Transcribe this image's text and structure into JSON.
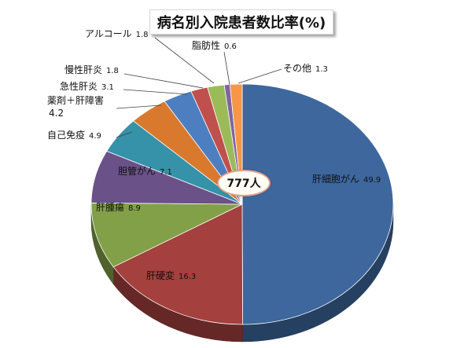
{
  "chart_data": {
    "type": "pie",
    "title": "病名別入院患者数比率(%)",
    "center_label": "777人",
    "slices": [
      {
        "name": "肝細胞がん",
        "value": 49.9,
        "color": "#3d679d"
      },
      {
        "name": "肝硬変",
        "value": 16.3,
        "color": "#a4403d"
      },
      {
        "name": "肝腫瘍",
        "value": 8.9,
        "color": "#82a048"
      },
      {
        "name": "胆管がん",
        "value": 7.1,
        "color": "#6a5188"
      },
      {
        "name": "自己免疫",
        "value": 4.9,
        "color": "#3592a8"
      },
      {
        "name": "薬剤＋肝障害",
        "value": 4.2,
        "color": "#d9792d"
      },
      {
        "name": "急性肝炎",
        "value": 3.1,
        "color": "#4d7fc0"
      },
      {
        "name": "慢性肝炎",
        "value": 1.8,
        "color": "#c0504d"
      },
      {
        "name": "アルコール",
        "value": 1.8,
        "color": "#9bbb59"
      },
      {
        "name": "脂肪性",
        "value": 0.6,
        "color": "#8064a2"
      },
      {
        "name": "その他",
        "value": 1.3,
        "color": "#f79646"
      }
    ]
  }
}
